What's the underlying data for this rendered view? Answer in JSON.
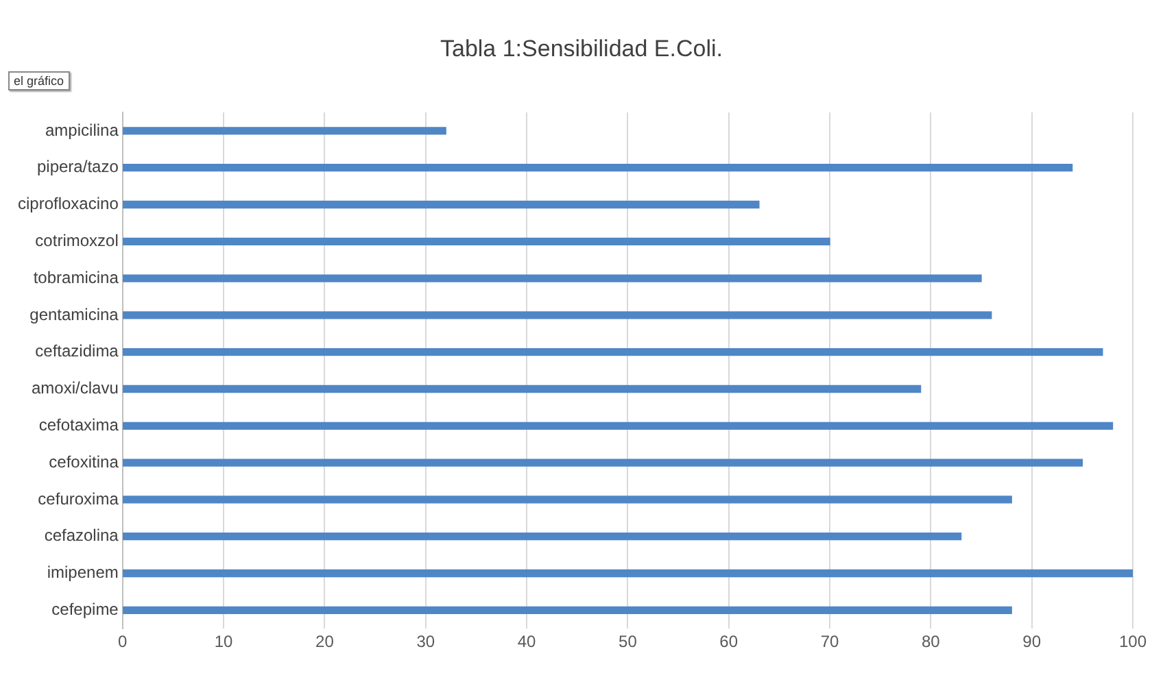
{
  "chart_data": {
    "type": "bar",
    "orientation": "horizontal",
    "title": "Tabla 1:Sensibilidad E.Coli.",
    "categories": [
      "ampicilina",
      "pipera/tazo",
      "ciprofloxacino",
      "cotrimoxzol",
      "tobramicina",
      "gentamicina",
      "ceftazidima",
      "amoxi/clavu",
      "cefotaxima",
      "cefoxitina",
      "cefuroxima",
      "cefazolina",
      "imipenem",
      "cefepime"
    ],
    "values": [
      32,
      94,
      63,
      70,
      85,
      86,
      97,
      79,
      98,
      95,
      88,
      83,
      100,
      88
    ],
    "color": "#4f86c6",
    "xlim": [
      0,
      100
    ],
    "xticks": [
      0,
      10,
      20,
      30,
      40,
      50,
      60,
      70,
      80,
      90,
      100
    ],
    "grid": "x",
    "legend": false,
    "annotations": [
      "el gráfico"
    ]
  }
}
